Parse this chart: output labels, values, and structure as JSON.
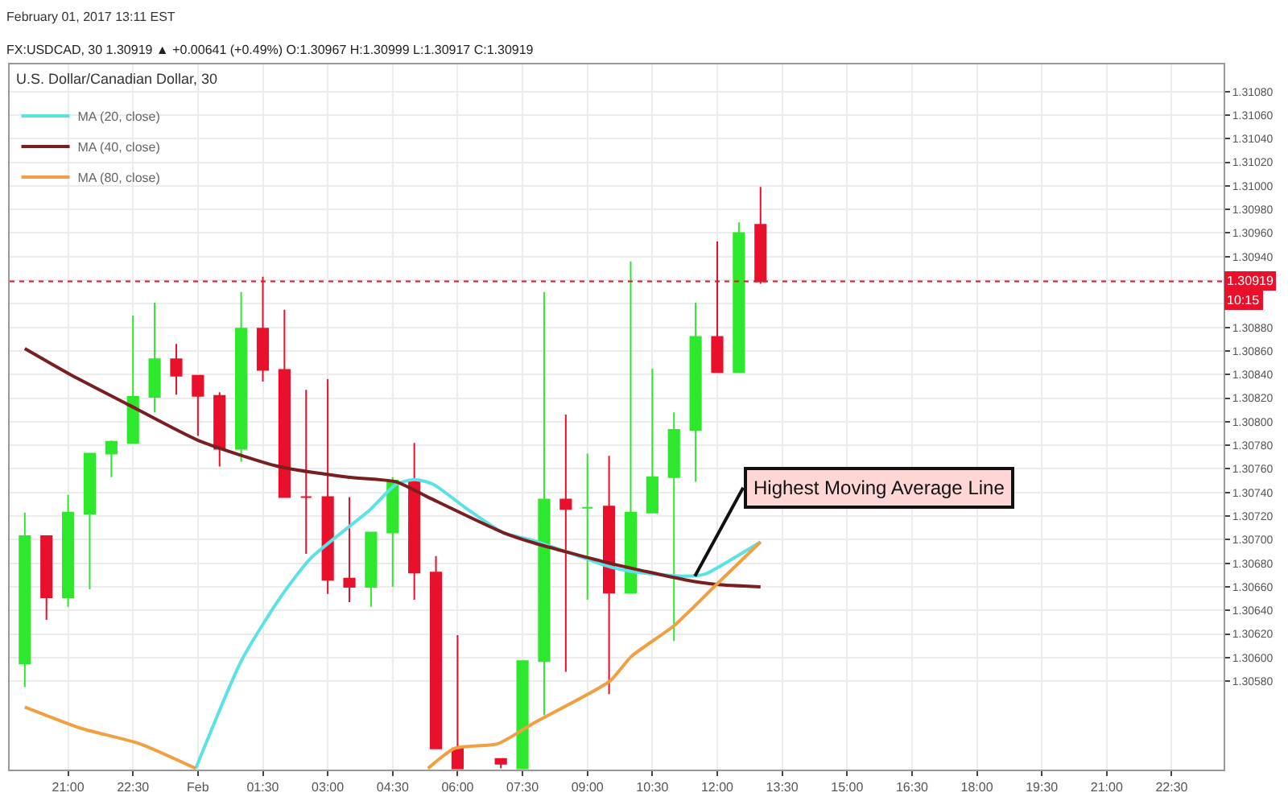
{
  "chart_data": {
    "type": "candlestick",
    "title": "February 01, 2017 13:11 EST",
    "subtitle": "FX:USDCAD, 30 1.30919 ▲ +0.00641 (+0.49%) O:1.30967 H:1.30999 L:1.30917 C:1.30919",
    "x": [
      "2017-01-31T20:00",
      "2017-01-31T20:30",
      "2017-01-31T21:00",
      "2017-01-31T21:30",
      "2017-01-31T22:00",
      "2017-01-31T22:30",
      "2017-01-31T23:00",
      "2017-01-31T23:30",
      "2017-02-01T00:00",
      "2017-02-01T00:30",
      "2017-02-01T01:00",
      "2017-02-01T01:30",
      "2017-02-01T02:00",
      "2017-02-01T02:30",
      "2017-02-01T03:00",
      "2017-02-01T03:30",
      "2017-02-01T04:00",
      "2017-02-01T04:30",
      "2017-02-01T05:00",
      "2017-02-01T05:30",
      "2017-02-01T06:00",
      "2017-02-01T07:00",
      "2017-02-01T07:30",
      "2017-02-01T08:00",
      "2017-02-01T08:30",
      "2017-02-01T09:00",
      "2017-02-01T09:30",
      "2017-02-01T10:00",
      "2017-02-01T10:30",
      "2017-02-01T11:00",
      "2017-02-01T11:30",
      "2017-02-01T12:00",
      "2017-02-01T12:30",
      "2017-02-01T13:00"
    ],
    "ohlc": [
      [
        1.30595,
        1.30723,
        1.30575,
        1.30703
      ],
      [
        1.30703,
        1.30703,
        1.30632,
        1.30651
      ],
      [
        1.30651,
        1.30738,
        1.30643,
        1.30723
      ],
      [
        1.30722,
        1.30773,
        1.30658,
        1.30773
      ],
      [
        1.30773,
        1.30784,
        1.30753,
        1.30783
      ],
      [
        1.30782,
        1.3089,
        1.30782,
        1.30821
      ],
      [
        1.30821,
        1.30901,
        1.30808,
        1.30853
      ],
      [
        1.30853,
        1.30866,
        1.30823,
        1.30839
      ],
      [
        1.30839,
        1.30839,
        1.30788,
        1.30822
      ],
      [
        1.30822,
        1.30825,
        1.30762,
        1.30777
      ],
      [
        1.30777,
        1.3091,
        1.30766,
        1.30879
      ],
      [
        1.30879,
        1.30923,
        1.30834,
        1.30844
      ],
      [
        1.30844,
        1.30895,
        1.30736,
        1.30736
      ],
      [
        1.30736,
        1.30827,
        1.30688,
        1.30736
      ],
      [
        1.30736,
        1.30836,
        1.30654,
        1.30666
      ],
      [
        1.30667,
        1.30736,
        1.30647,
        1.3066
      ],
      [
        1.3066,
        1.30706,
        1.30643,
        1.30706
      ],
      [
        1.30706,
        1.30753,
        1.3066,
        1.3075
      ],
      [
        1.30749,
        1.30782,
        1.30649,
        1.30672
      ],
      [
        1.30672,
        1.30686,
        1.30523,
        1.30523
      ],
      [
        1.30523,
        1.30619,
        1.30506,
        1.30506
      ],
      [
        1.30514,
        1.30514,
        1.30506,
        1.3051
      ],
      [
        1.30506,
        1.30597,
        1.30506,
        1.30597
      ],
      [
        1.30597,
        1.3091,
        1.30551,
        1.30734
      ],
      [
        1.30734,
        1.30806,
        1.30588,
        1.30726
      ],
      [
        1.30727,
        1.30773,
        1.30649,
        1.30727
      ],
      [
        1.30728,
        1.30771,
        1.30569,
        1.30655
      ],
      [
        1.30655,
        1.30936,
        1.30655,
        1.30723
      ],
      [
        1.30723,
        1.30845,
        1.30723,
        1.30753
      ],
      [
        1.30753,
        1.30808,
        1.30614,
        1.30793
      ],
      [
        1.30793,
        1.30901,
        1.30749,
        1.30872
      ],
      [
        1.30872,
        1.30953,
        1.30842,
        1.30842
      ],
      [
        1.30842,
        1.30969,
        1.30842,
        1.3096
      ],
      [
        1.30967,
        1.30999,
        1.30917,
        1.30919
      ]
    ],
    "colors": [
      "#2ee82e",
      "#e8102a",
      "#2ee82e",
      "#2ee82e",
      "#2ee82e",
      "#2ee82e",
      "#2ee82e",
      "#e8102a",
      "#e8102a",
      "#e8102a",
      "#2ee82e",
      "#e8102a",
      "#e8102a",
      "#e8102a",
      "#e8102a",
      "#e8102a",
      "#2ee82e",
      "#2ee82e",
      "#e8102a",
      "#e8102a",
      "#e8102a",
      "#e8102a",
      "#2ee82e",
      "#2ee82e",
      "#e8102a",
      "#2ee82e",
      "#e8102a",
      "#2ee82e",
      "#2ee82e",
      "#2ee82e",
      "#2ee82e",
      "#e8102a",
      "#2ee82e",
      "#e8102a"
    ],
    "series": [
      {
        "name": "MA (20, close)",
        "type": "line",
        "color": "#5ce1e6",
        "x": [
          "2017-01-31T23:57",
          "2017-02-01T01:00",
          "2017-02-01T01:52",
          "2017-02-01T02:36",
          "2017-02-01T03:58",
          "2017-02-01T04:35",
          "2017-02-01T05:01",
          "2017-02-01T05:26",
          "2017-02-01T06:11",
          "2017-02-01T07:03",
          "2017-02-01T07:47",
          "2017-02-01T09:31",
          "2017-02-01T10:01",
          "2017-02-01T11:15",
          "2017-02-01T11:44",
          "2017-02-01T12:22",
          "2017-02-01T13:00"
        ],
        "values": [
          1.30506,
          1.30597,
          1.30649,
          1.30684,
          1.30725,
          1.30747,
          1.30751,
          1.30747,
          1.30727,
          1.30706,
          1.30699,
          1.30677,
          1.30673,
          1.30669,
          1.30671,
          1.30684,
          1.30698
        ]
      },
      {
        "name": "MA (40, close)",
        "type": "line",
        "color": "#7a1f1f",
        "x": [
          "2017-01-31T20:00",
          "2017-01-31T21:03",
          "2017-01-31T22:25",
          "2017-02-01T00:01",
          "2017-02-01T01:52",
          "2017-02-01T03:28",
          "2017-02-01T04:35",
          "2017-02-01T05:19",
          "2017-02-01T07:03",
          "2017-02-01T07:47",
          "2017-02-01T09:31",
          "2017-02-01T11:15",
          "2017-02-01T11:59",
          "2017-02-01T13:00"
        ],
        "values": [
          1.30862,
          1.3084,
          1.30814,
          1.30784,
          1.30762,
          1.30753,
          1.30749,
          1.30736,
          1.30706,
          1.30697,
          1.3068,
          1.30666,
          1.30662,
          1.3066
        ]
      },
      {
        "name": "MA (80, close)",
        "type": "line",
        "color": "#f0a040",
        "x": [
          "2017-01-31T20:00",
          "2017-01-31T21:18",
          "2017-01-31T22:39",
          "2017-01-31T23:57",
          "2017-02-01T02:00",
          "2017-02-01T05:19",
          "2017-02-01T05:56",
          "2017-02-01T06:56",
          "2017-02-01T07:47",
          "2017-02-01T09:31",
          "2017-02-01T10:01",
          "2017-02-01T11:00",
          "2017-02-01T11:59",
          "2017-02-01T13:00"
        ],
        "values": [
          1.30558,
          1.3054,
          1.30527,
          1.30506,
          null,
          1.30506,
          1.30523,
          1.30527,
          1.30545,
          1.3058,
          1.30601,
          1.30627,
          1.30662,
          1.30698
        ]
      }
    ],
    "annotations": [
      "U.S. Dollar/Canadian Dollar, 30",
      {
        "text": "Highest Moving Average Line",
        "x": "2017-02-01T11:29",
        "y": 1.30669
      },
      "10:15"
    ],
    "ref_lines": [
      {
        "axis": "y",
        "value": 1.30919,
        "label": "1.30919",
        "color": "#e8102a",
        "line_style": "dotted"
      }
    ],
    "xlim": [
      "2017-01-31T19:39",
      "2017-02-01T23:42"
    ],
    "xticks": [
      {
        "value": "2017-01-31T21:00",
        "label": "21:00"
      },
      {
        "value": "2017-01-31T22:30",
        "label": "22:30"
      },
      {
        "value": "2017-02-01T00:00",
        "label": "Feb"
      },
      {
        "value": "2017-02-01T01:30",
        "label": "01:30"
      },
      {
        "value": "2017-02-01T03:00",
        "label": "03:00"
      },
      {
        "value": "2017-02-01T04:30",
        "label": "04:30"
      },
      {
        "value": "2017-02-01T06:00",
        "label": "06:00"
      },
      {
        "value": "2017-02-01T07:30",
        "label": "07:30"
      },
      {
        "value": "2017-02-01T09:00",
        "label": "09:00"
      },
      {
        "value": "2017-02-01T10:30",
        "label": "10:30"
      },
      {
        "value": "2017-02-01T12:00",
        "label": "12:00"
      },
      {
        "value": "2017-02-01T13:30",
        "label": "13:30"
      },
      {
        "value": "2017-02-01T15:00",
        "label": "15:00"
      },
      {
        "value": "2017-02-01T16:30",
        "label": "16:30"
      },
      {
        "value": "2017-02-01T18:00",
        "label": "18:00"
      },
      {
        "value": "2017-02-01T19:30",
        "label": "19:30"
      },
      {
        "value": "2017-02-01T21:00",
        "label": "21:00"
      },
      {
        "value": "2017-02-01T22:30",
        "label": "22:30"
      }
    ],
    "ylim": [
      1.30505,
      1.31103
    ],
    "yticks": [
      {
        "value": 1.3058,
        "label": "1.30580"
      },
      {
        "value": 1.306,
        "label": "1.30600"
      },
      {
        "value": 1.3062,
        "label": "1.30620"
      },
      {
        "value": 1.3064,
        "label": "1.30640"
      },
      {
        "value": 1.3066,
        "label": "1.30660"
      },
      {
        "value": 1.3068,
        "label": "1.30680"
      },
      {
        "value": 1.307,
        "label": "1.30700"
      },
      {
        "value": 1.3072,
        "label": "1.30720"
      },
      {
        "value": 1.3074,
        "label": "1.30740"
      },
      {
        "value": 1.3076,
        "label": "1.30760"
      },
      {
        "value": 1.3078,
        "label": "1.30780"
      },
      {
        "value": 1.308,
        "label": "1.30800"
      },
      {
        "value": 1.3082,
        "label": "1.30820"
      },
      {
        "value": 1.3084,
        "label": "1.30840"
      },
      {
        "value": 1.3086,
        "label": "1.30860"
      },
      {
        "value": 1.3088,
        "label": "1.30880"
      },
      {
        "value": 1.309,
        "label": null
      },
      {
        "value": 1.3092,
        "label": null
      },
      {
        "value": 1.3094,
        "label": "1.30940"
      },
      {
        "value": 1.3096,
        "label": "1.30960"
      },
      {
        "value": 1.3098,
        "label": "1.30980"
      },
      {
        "value": 1.31,
        "label": "1.31000"
      },
      {
        "value": 1.3102,
        "label": "1.31020"
      },
      {
        "value": 1.3104,
        "label": "1.31040"
      },
      {
        "value": 1.3106,
        "label": "1.31060"
      },
      {
        "value": 1.3108,
        "label": "1.31080"
      }
    ],
    "grid": true,
    "legend": "top left"
  }
}
